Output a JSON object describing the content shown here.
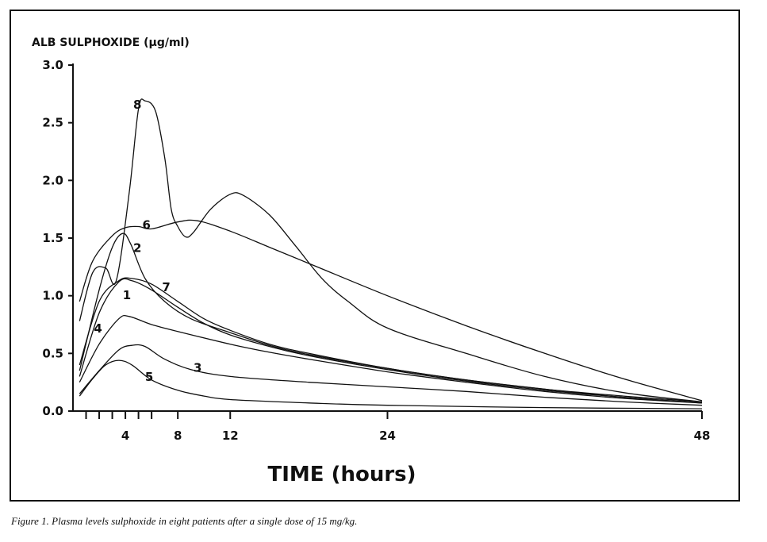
{
  "chart_data": {
    "type": "line",
    "ylabel": "ALB SULPHOXIDE (µg/ml)",
    "xlabel": "TIME (hours)",
    "ylim": [
      0,
      3.0
    ],
    "xlim": [
      0,
      48
    ],
    "yticks": [
      "0.0",
      "0.5",
      "1.0",
      "1.5",
      "2.0",
      "2.5",
      "3.0"
    ],
    "xticks": [
      {
        "v": 4,
        "label": "4"
      },
      {
        "v": 8,
        "label": "8"
      },
      {
        "v": 12,
        "label": "12"
      },
      {
        "v": 24,
        "label": "24"
      },
      {
        "v": 48,
        "label": "48"
      }
    ],
    "minor_xticks": [
      1,
      2,
      3,
      5,
      6
    ],
    "series": [
      {
        "name": "1",
        "label_at": [
          3.8,
          0.97
        ],
        "points": [
          [
            0.5,
            0.3
          ],
          [
            2,
            0.85
          ],
          [
            3.5,
            1.12
          ],
          [
            4.5,
            1.13
          ],
          [
            6,
            1.05
          ],
          [
            8,
            0.9
          ],
          [
            10,
            0.76
          ],
          [
            12,
            0.66
          ],
          [
            15,
            0.56
          ],
          [
            18,
            0.48
          ],
          [
            24,
            0.36
          ],
          [
            30,
            0.26
          ],
          [
            36,
            0.18
          ],
          [
            42,
            0.12
          ],
          [
            48,
            0.07
          ]
        ]
      },
      {
        "name": "2",
        "label_at": [
          4.6,
          1.38
        ],
        "points": [
          [
            0.5,
            0.35
          ],
          [
            2,
            1.05
          ],
          [
            3,
            1.42
          ],
          [
            3.8,
            1.54
          ],
          [
            4.4,
            1.45
          ],
          [
            5.5,
            1.15
          ],
          [
            7,
            0.95
          ],
          [
            9,
            0.8
          ],
          [
            12,
            0.68
          ],
          [
            15,
            0.57
          ],
          [
            18,
            0.49
          ],
          [
            24,
            0.37
          ],
          [
            30,
            0.27
          ],
          [
            36,
            0.19
          ],
          [
            42,
            0.13
          ],
          [
            48,
            0.08
          ]
        ]
      },
      {
        "name": "3",
        "label_at": [
          9.2,
          0.34
        ],
        "points": [
          [
            0.5,
            0.15
          ],
          [
            2,
            0.35
          ],
          [
            3.5,
            0.53
          ],
          [
            4.5,
            0.57
          ],
          [
            5.5,
            0.56
          ],
          [
            7,
            0.45
          ],
          [
            9,
            0.36
          ],
          [
            12,
            0.3
          ],
          [
            18,
            0.25
          ],
          [
            24,
            0.21
          ],
          [
            30,
            0.17
          ],
          [
            36,
            0.12
          ],
          [
            42,
            0.08
          ],
          [
            48,
            0.05
          ]
        ]
      },
      {
        "name": "4",
        "label_at": [
          1.6,
          0.68
        ],
        "points": [
          [
            0.5,
            0.25
          ],
          [
            2,
            0.58
          ],
          [
            3.5,
            0.8
          ],
          [
            4.3,
            0.82
          ],
          [
            6,
            0.75
          ],
          [
            8,
            0.69
          ],
          [
            12,
            0.58
          ],
          [
            15,
            0.51
          ],
          [
            18,
            0.45
          ],
          [
            24,
            0.34
          ],
          [
            30,
            0.25
          ],
          [
            36,
            0.17
          ],
          [
            42,
            0.11
          ],
          [
            48,
            0.07
          ]
        ]
      },
      {
        "name": "5",
        "label_at": [
          5.5,
          0.26
        ],
        "points": [
          [
            0.5,
            0.13
          ],
          [
            1.5,
            0.28
          ],
          [
            2.5,
            0.4
          ],
          [
            3.5,
            0.44
          ],
          [
            4.5,
            0.4
          ],
          [
            6,
            0.27
          ],
          [
            8,
            0.18
          ],
          [
            10,
            0.13
          ],
          [
            12,
            0.1
          ],
          [
            18,
            0.07
          ],
          [
            24,
            0.05
          ],
          [
            36,
            0.03
          ],
          [
            48,
            0.02
          ]
        ]
      },
      {
        "name": "6",
        "label_at": [
          5.3,
          1.58
        ],
        "points": [
          [
            0.5,
            0.95
          ],
          [
            1.5,
            1.3
          ],
          [
            3,
            1.52
          ],
          [
            4,
            1.59
          ],
          [
            5,
            1.6
          ],
          [
            6,
            1.58
          ],
          [
            8,
            1.64
          ],
          [
            9.5,
            1.65
          ],
          [
            12,
            1.56
          ],
          [
            15,
            1.42
          ],
          [
            18,
            1.28
          ],
          [
            24,
            1.0
          ],
          [
            30,
            0.74
          ],
          [
            36,
            0.5
          ],
          [
            42,
            0.28
          ],
          [
            48,
            0.09
          ]
        ]
      },
      {
        "name": "7",
        "label_at": [
          6.8,
          1.04
        ],
        "points": [
          [
            0.5,
            0.4
          ],
          [
            2,
            0.95
          ],
          [
            3.5,
            1.13
          ],
          [
            4.5,
            1.15
          ],
          [
            6,
            1.1
          ],
          [
            8,
            0.95
          ],
          [
            10,
            0.8
          ],
          [
            12,
            0.7
          ],
          [
            15,
            0.58
          ],
          [
            18,
            0.5
          ],
          [
            24,
            0.37
          ],
          [
            30,
            0.27
          ],
          [
            36,
            0.19
          ],
          [
            42,
            0.12
          ],
          [
            48,
            0.07
          ]
        ]
      },
      {
        "name": "8",
        "label_at": [
          4.6,
          2.62
        ],
        "points": [
          [
            0.5,
            0.78
          ],
          [
            1.5,
            1.2
          ],
          [
            2.5,
            1.24
          ],
          [
            3.3,
            1.13
          ],
          [
            4.3,
            1.9
          ],
          [
            5,
            2.62
          ],
          [
            5.5,
            2.69
          ],
          [
            6.3,
            2.6
          ],
          [
            7,
            2.2
          ],
          [
            7.5,
            1.75
          ],
          [
            8,
            1.6
          ],
          [
            8.6,
            1.51
          ],
          [
            9.2,
            1.55
          ],
          [
            10.5,
            1.75
          ],
          [
            12,
            1.88
          ],
          [
            13,
            1.87
          ],
          [
            15,
            1.7
          ],
          [
            17,
            1.43
          ],
          [
            19,
            1.15
          ],
          [
            21,
            0.95
          ],
          [
            24,
            0.72
          ],
          [
            30,
            0.5
          ],
          [
            36,
            0.3
          ],
          [
            42,
            0.16
          ],
          [
            48,
            0.08
          ]
        ]
      }
    ]
  },
  "caption": "Figure 1. Plasma levels sulphoxide in eight patients after a single dose of 15 mg/kg."
}
